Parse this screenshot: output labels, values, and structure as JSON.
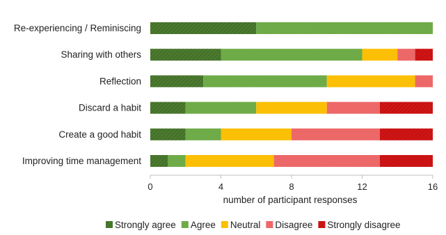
{
  "chart_data": {
    "type": "bar",
    "orientation": "horizontal",
    "stacked": true,
    "title": "",
    "xlabel": "number of participant responses",
    "ylabel": "",
    "xlim": [
      0,
      16
    ],
    "x_ticks": [
      0,
      4,
      8,
      12,
      16
    ],
    "grid": false,
    "legend_position": "bottom",
    "categories": [
      "Re-experiencing / Reminiscing",
      "Sharing with others",
      "Reflection",
      "Discard a habit",
      "Create a good habit",
      "Improving time management"
    ],
    "series": [
      {
        "name": "Strongly agree",
        "color": "#4b7a2e",
        "pattern": "diagonal",
        "values": [
          6,
          4,
          3,
          2,
          2,
          1
        ]
      },
      {
        "name": "Agree",
        "color": "#72b04a",
        "pattern": "dots",
        "values": [
          10,
          8,
          7,
          4,
          2,
          1
        ]
      },
      {
        "name": "Neutral",
        "color": "#fbbf05",
        "pattern": "solid",
        "values": [
          0,
          2,
          5,
          4,
          4,
          5
        ]
      },
      {
        "name": "Disagree",
        "color": "#f46b6b",
        "pattern": "dots",
        "values": [
          0,
          1,
          1,
          3,
          5,
          6
        ]
      },
      {
        "name": "Strongly disagree",
        "color": "#d21414",
        "pattern": "diagonal",
        "values": [
          0,
          1,
          0,
          3,
          3,
          3
        ]
      }
    ]
  }
}
